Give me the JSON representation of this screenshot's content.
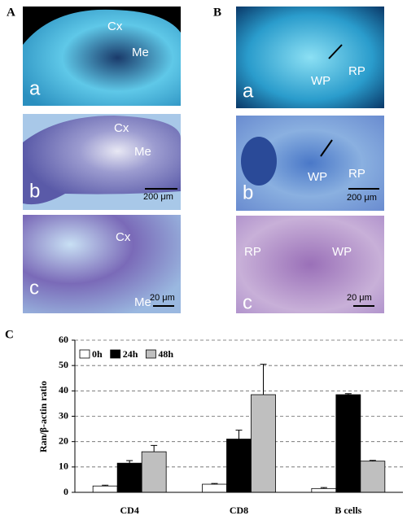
{
  "panel_labels": [
    "A",
    "B",
    "C"
  ],
  "micrographs": [
    {
      "labels": [
        "Cx",
        "Me",
        "a"
      ]
    },
    {
      "labels": [
        "Cx",
        "Me",
        "b",
        "200 μm"
      ]
    },
    {
      "labels": [
        "Cx",
        "Me",
        "c",
        "20 μm"
      ]
    },
    {
      "labels": [
        "WP",
        "RP",
        "a"
      ]
    },
    {
      "labels": [
        "WP",
        "RP",
        "b",
        "200 μm"
      ]
    },
    {
      "labels": [
        "RP",
        "WP",
        "c",
        "20 μm"
      ]
    }
  ],
  "chart_data": {
    "type": "bar",
    "y_label": "Ran/β-actin ratio",
    "categories": [
      "CD4",
      "CD8",
      "B cells"
    ],
    "series": [
      {
        "name": "0h",
        "color": "#ffffff",
        "values": [
          2.5,
          3.2,
          1.5
        ],
        "errors": [
          0.3,
          0.3,
          0.4
        ]
      },
      {
        "name": "24h",
        "color": "#000000",
        "values": [
          11.5,
          21,
          38.5
        ],
        "errors": [
          1,
          3.5,
          0.4
        ]
      },
      {
        "name": "48h",
        "color": "#bfbfbf",
        "values": [
          16,
          38.5,
          12.3
        ],
        "errors": [
          2.5,
          12,
          0.3
        ]
      }
    ],
    "ylim": [
      0,
      60
    ],
    "yticks": [
      0,
      10,
      20,
      30,
      40,
      50,
      60
    ],
    "grid": true,
    "legend": "top-left"
  }
}
